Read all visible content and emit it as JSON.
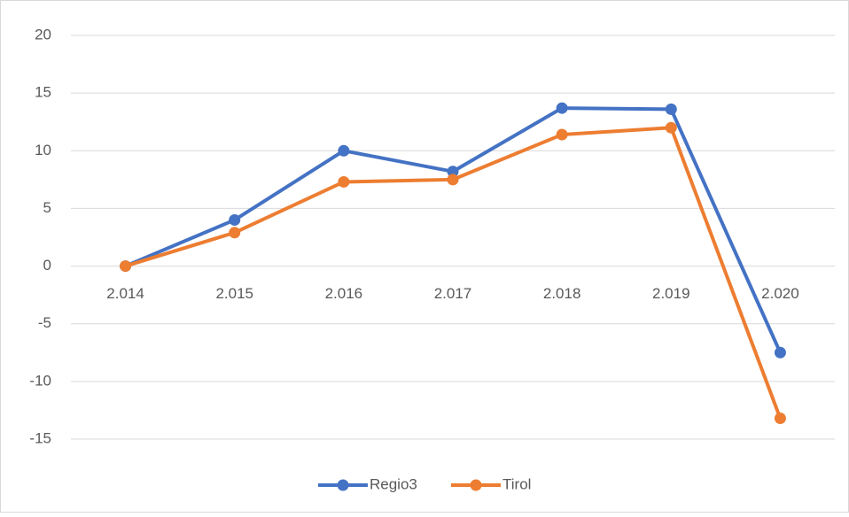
{
  "chart_data": {
    "type": "line",
    "categories": [
      "2.014",
      "2.015",
      "2.016",
      "2.017",
      "2.018",
      "2.019",
      "2.020"
    ],
    "series": [
      {
        "name": "Regio3",
        "color": "#4472c4",
        "values": [
          0,
          4.0,
          10.0,
          8.2,
          13.7,
          13.6,
          -7.5
        ]
      },
      {
        "name": "Tirol",
        "color": "#ed7d31",
        "values": [
          0,
          2.9,
          7.3,
          7.5,
          11.4,
          12.0,
          -13.2
        ]
      }
    ],
    "ylim": [
      -15,
      20
    ],
    "yticks": [
      -15,
      -10,
      -5,
      0,
      5,
      10,
      15,
      20
    ],
    "grid": true,
    "legend": "bottom"
  }
}
